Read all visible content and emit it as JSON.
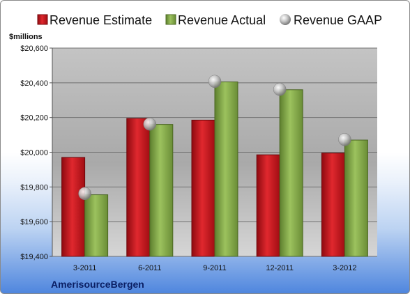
{
  "chart_data": {
    "type": "bar",
    "categories": [
      "3-2011",
      "6-2011",
      "9-2011",
      "12-2011",
      "3-2012"
    ],
    "series": [
      {
        "name": "Revenue Estimate",
        "kind": "bar",
        "color": "#c8141c",
        "values": [
          19970,
          20195,
          20185,
          19985,
          19995
        ]
      },
      {
        "name": "Revenue Actual",
        "kind": "bar",
        "color": "#7fa447",
        "values": [
          19755,
          20160,
          20405,
          20360,
          20070
        ]
      },
      {
        "name": "Revenue GAAP",
        "kind": "marker",
        "color": "#b8b8b8",
        "values": [
          19762,
          20162,
          20408,
          20362,
          20073
        ]
      }
    ],
    "ylim": [
      19400,
      20600
    ],
    "yticks": [
      19400,
      19600,
      19800,
      20000,
      20200,
      20400,
      20600
    ],
    "ytick_labels": [
      "$19,400",
      "$19,600",
      "$19,800",
      "$20,000",
      "$20,200",
      "$20,400",
      "$20,600"
    ],
    "ylabel": "$millions",
    "xlabel": "",
    "title": "",
    "company": "AmerisourceBergen",
    "legend_position": "top",
    "grid": true
  }
}
